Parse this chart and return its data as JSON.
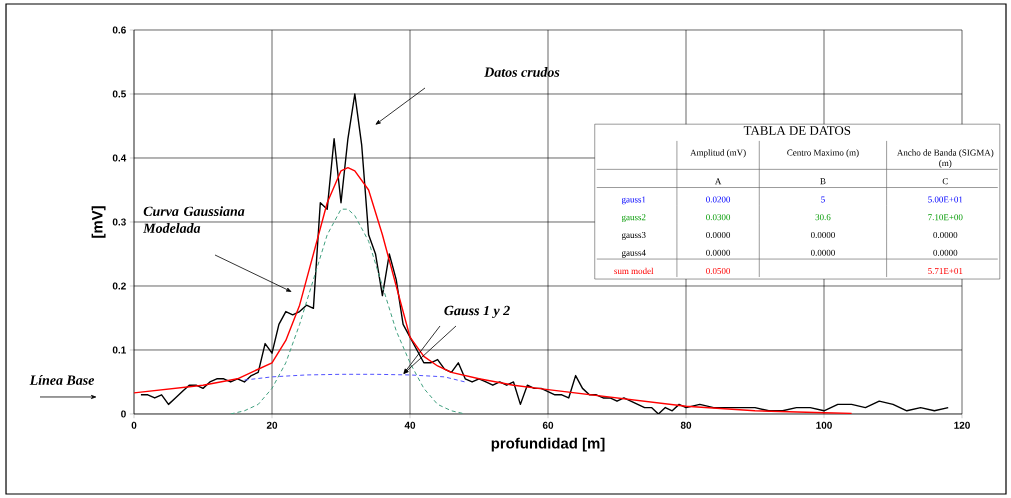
{
  "chart_data": [
    {
      "type": "line",
      "xlabel": "profundidad [m]",
      "ylabel": "[mV]",
      "xlim": [
        0,
        120
      ],
      "ylim": [
        0,
        0.6
      ],
      "xticks": [
        0,
        20,
        40,
        60,
        80,
        100,
        120
      ],
      "yticks": [
        0,
        0.1,
        0.2,
        0.3,
        0.4,
        0.5,
        0.6
      ],
      "grid": true,
      "annotations": [
        "Datos crudos",
        "Curva Gaussiana Modelada",
        {
          "text": "Gauss 1 y 2",
          "x": 39,
          "y": 0.062
        },
        "Línea Base"
      ],
      "series": [
        {
          "color": "#000000",
          "line_style": "solid",
          "x": [
            1,
            2,
            3,
            4,
            5,
            6,
            7,
            8,
            9,
            10,
            11,
            12,
            13,
            14,
            15,
            16,
            17,
            18,
            19,
            20,
            21,
            22,
            23,
            24,
            25,
            26,
            27,
            28,
            29,
            30,
            31,
            32,
            33,
            34,
            35,
            36,
            37,
            38,
            39,
            40,
            41,
            42,
            43,
            44,
            45,
            46,
            47,
            48,
            49,
            50,
            51,
            52,
            53,
            54,
            55,
            56,
            57,
            58,
            59,
            60,
            61,
            62,
            63,
            64,
            65,
            66,
            67,
            68,
            69,
            70,
            71,
            72,
            73,
            74,
            75,
            76,
            77,
            78,
            79,
            80,
            82,
            84,
            86,
            88,
            90,
            92,
            94,
            96,
            98,
            100,
            102,
            104,
            106,
            108,
            110,
            112,
            114,
            116,
            118
          ],
          "values": [
            0.03,
            0.03,
            0.025,
            0.03,
            0.015,
            0.025,
            0.035,
            0.045,
            0.045,
            0.04,
            0.05,
            0.055,
            0.055,
            0.05,
            0.055,
            0.05,
            0.06,
            0.065,
            0.11,
            0.095,
            0.14,
            0.16,
            0.155,
            0.16,
            0.17,
            0.165,
            0.33,
            0.32,
            0.43,
            0.33,
            0.43,
            0.5,
            0.42,
            0.28,
            0.25,
            0.185,
            0.25,
            0.21,
            0.14,
            0.12,
            0.1,
            0.08,
            0.08,
            0.085,
            0.07,
            0.065,
            0.08,
            0.055,
            0.05,
            0.055,
            0.05,
            0.045,
            0.05,
            0.045,
            0.05,
            0.015,
            0.045,
            0.04,
            0.04,
            0.035,
            0.03,
            0.03,
            0.025,
            0.06,
            0.04,
            0.03,
            0.03,
            0.025,
            0.025,
            0.02,
            0.025,
            0.02,
            0.015,
            0.01,
            0.01,
            0.0,
            0.01,
            0.005,
            0.015,
            0.01,
            0.015,
            0.01,
            0.01,
            0.01,
            0.01,
            0.005,
            0.005,
            0.01,
            0.01,
            0.005,
            0.015,
            0.015,
            0.01,
            0.02,
            0.015,
            0.005,
            0.01,
            0.005,
            0.01
          ]
        },
        {
          "color": "#ff0000",
          "line_style": "solid",
          "x": [
            0,
            10,
            15,
            20,
            22,
            24,
            26,
            28,
            30,
            31,
            32,
            34,
            36,
            38,
            40,
            42,
            44,
            46,
            50,
            55,
            60,
            70,
            80,
            90,
            100,
            104
          ],
          "values": [
            0.033,
            0.045,
            0.055,
            0.08,
            0.115,
            0.17,
            0.25,
            0.33,
            0.38,
            0.385,
            0.38,
            0.35,
            0.28,
            0.2,
            0.12,
            0.09,
            0.075,
            0.065,
            0.055,
            0.045,
            0.038,
            0.025,
            0.012,
            0.005,
            0.002,
            0.001
          ]
        },
        {
          "color": "#5050ff",
          "line_style": "dashed",
          "x": [
            16,
            20,
            25,
            30,
            35,
            40,
            45,
            48
          ],
          "values": [
            0.053,
            0.058,
            0.061,
            0.062,
            0.062,
            0.061,
            0.058,
            0.05
          ]
        },
        {
          "color": "#40a080",
          "line_style": "dashed",
          "x": [
            14,
            16,
            18,
            20,
            22,
            24,
            26,
            28,
            30,
            31,
            32,
            34,
            36,
            38,
            40,
            42,
            44,
            46,
            48
          ],
          "values": [
            0.0,
            0.005,
            0.015,
            0.04,
            0.08,
            0.14,
            0.21,
            0.28,
            0.32,
            0.32,
            0.31,
            0.27,
            0.2,
            0.13,
            0.08,
            0.04,
            0.015,
            0.005,
            0.0
          ]
        }
      ]
    },
    {
      "type": "other",
      "title": "TABLA DE DATOS",
      "annotations": [
        "Amplitud (mV)",
        "Centro Maximo (m)",
        "Ancho de Banda (SIGMA) (m)",
        "A",
        "B",
        "C",
        "gauss1",
        "0.0200",
        "5",
        "5.00E+01",
        "gauss2",
        "0.0300",
        "30.6",
        "7.10E+00",
        "gauss3",
        "0.0000",
        "0.0000",
        "0.0000",
        "gauss4",
        "0.0000",
        "0.0000",
        "0.0000",
        "sum model",
        "0.0500",
        "5.71E+01"
      ]
    }
  ]
}
